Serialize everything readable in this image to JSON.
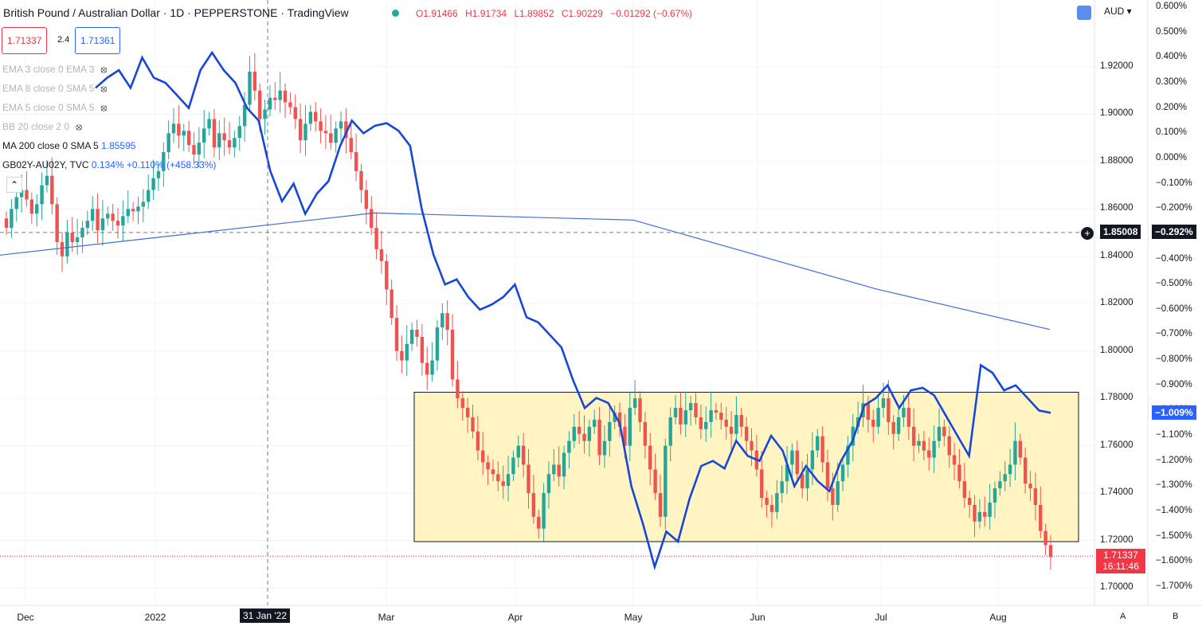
{
  "header": {
    "symbol": "British Pound / Australian Dollar · 1D · PEPPERSTONE · TradingView",
    "open": "O1.91466",
    "high": "H1.91734",
    "low": "L1.89852",
    "close": "C1.90229",
    "change": "−0.01292 (−0.67%)"
  },
  "order_panel": {
    "sell": "1.71337",
    "spread": "2.4",
    "buy": "1.71361"
  },
  "legend": [
    {
      "text": "EMA 3 close 0 EMA 3",
      "hidden": true
    },
    {
      "text": "EMA 8 close 0 SMA 5",
      "hidden": true
    },
    {
      "text": "EMA 5 close 0 SMA 5",
      "hidden": true
    },
    {
      "text": "BB 20 close 2 0",
      "hidden": true
    },
    {
      "text": "MA 200 close 0 SMA 5",
      "value": "1.85595",
      "hidden": false
    },
    {
      "text": "GB02Y-AU02Y, TVC",
      "value": "0.134%  +0.110%  (+458.33%)",
      "hidden": false
    }
  ],
  "currency": "AUD",
  "crosshair": {
    "price": "1.85008",
    "pct": "−0.292%",
    "date": "31 Jan '22"
  },
  "current": {
    "price": "1.71337",
    "countdown": "16:11:46"
  },
  "spread_tag": "−1.009%",
  "scale_buttons": {
    "a": "A",
    "b": "B"
  },
  "colors": {
    "up": "#26a69a",
    "down": "#ef5350",
    "ma": "#3d6fd6",
    "spread": "#1747d9",
    "box_fill": "#fff4c2"
  },
  "chart_data": {
    "type": "candlestick",
    "y_axis_right": {
      "ticks": [
        "1.92000",
        "1.90000",
        "1.88000",
        "1.86000",
        "1.84000",
        "1.82000",
        "1.80000",
        "1.78000",
        "1.76000",
        "1.74000",
        "1.72000",
        "1.70000"
      ],
      "range": [
        1.6925,
        1.9445
      ]
    },
    "pct_axis": {
      "ticks": [
        "0.600%",
        "0.500%",
        "0.400%",
        "0.300%",
        "0.200%",
        "0.100%",
        "0.000%",
        "−0.100%",
        "−0.200%",
        "−0.300%",
        "−0.400%",
        "−0.500%",
        "−0.600%",
        "−0.700%",
        "−0.800%",
        "−0.900%",
        "−1.000%",
        "−1.100%",
        "−1.200%",
        "−1.300%",
        "−1.400%",
        "−1.500%",
        "−1.600%",
        "−1.700%"
      ],
      "range": [
        0.6,
        -1.7
      ]
    },
    "x_axis": {
      "labels": [
        "Dec",
        "2022",
        "Mar",
        "Apr",
        "May",
        "Jun",
        "Jul",
        "Aug"
      ]
    },
    "candles_close": [
      1.852,
      1.86,
      1.865,
      1.868,
      1.864,
      1.858,
      1.862,
      1.87,
      1.874,
      1.862,
      1.846,
      1.84,
      1.85,
      1.846,
      1.848,
      1.852,
      1.855,
      1.86,
      1.851,
      1.856,
      1.858,
      1.855,
      1.853,
      1.857,
      1.86,
      1.859,
      1.861,
      1.863,
      1.868,
      1.873,
      1.876,
      1.884,
      1.892,
      1.896,
      1.891,
      1.893,
      1.887,
      1.883,
      1.888,
      1.894,
      1.898,
      1.886,
      1.892,
      1.889,
      1.886,
      1.89,
      1.895,
      1.904,
      1.918,
      1.91,
      1.898,
      1.902,
      1.907,
      1.906,
      1.91,
      1.905,
      1.903,
      1.898,
      1.889,
      1.896,
      1.901,
      1.897,
      1.893,
      1.892,
      1.888,
      1.894,
      1.897,
      1.89,
      1.884,
      1.876,
      1.868,
      1.86,
      1.852,
      1.843,
      1.838,
      1.826,
      1.814,
      1.8,
      1.796,
      1.803,
      1.809,
      1.806,
      1.795,
      1.79,
      1.796,
      1.81,
      1.816,
      1.809,
      1.788,
      1.78,
      1.776,
      1.772,
      1.766,
      1.758,
      1.753,
      1.75,
      1.748,
      1.745,
      1.743,
      1.748,
      1.755,
      1.76,
      1.752,
      1.74,
      1.73,
      1.725,
      1.74,
      1.748,
      1.752,
      1.747,
      1.757,
      1.762,
      1.768,
      1.765,
      1.762,
      1.768,
      1.771,
      1.756,
      1.762,
      1.77,
      1.774,
      1.768,
      1.76,
      1.776,
      1.78,
      1.77,
      1.76,
      1.75,
      1.74,
      1.73,
      1.76,
      1.772,
      1.776,
      1.769,
      1.775,
      1.778,
      1.772,
      1.767,
      1.77,
      1.775,
      1.774,
      1.771,
      1.768,
      1.765,
      1.773,
      1.768,
      1.762,
      1.758,
      1.75,
      1.738,
      1.735,
      1.732,
      1.74,
      1.745,
      1.752,
      1.758,
      1.748,
      1.742,
      1.75,
      1.758,
      1.764,
      1.753,
      1.742,
      1.735,
      1.745,
      1.752,
      1.76,
      1.768,
      1.772,
      1.778,
      1.771,
      1.768,
      1.776,
      1.78,
      1.77,
      1.765,
      1.772,
      1.776,
      1.768,
      1.76,
      1.762,
      1.758,
      1.755,
      1.762,
      1.768,
      1.764,
      1.756,
      1.752,
      1.745,
      1.738,
      1.735,
      1.728,
      1.732,
      1.73,
      1.736,
      1.742,
      1.745,
      1.748,
      1.752,
      1.762,
      1.755,
      1.744,
      1.742,
      1.735,
      1.724,
      1.718,
      1.713
    ],
    "ma200": [
      1.8405,
      1.8583,
      1.8553,
      1.8262,
      1.8091
    ],
    "gb02y_au02y_pct": [
      0.28,
      0.32,
      0.35,
      0.28,
      0.4,
      0.32,
      0.3,
      0.25,
      0.2,
      0.35,
      0.42,
      0.35,
      0.3,
      0.2,
      0.15,
      -0.05,
      -0.17,
      -0.1,
      -0.22,
      -0.14,
      -0.09,
      0.05,
      0.15,
      0.1,
      0.13,
      0.14,
      0.11,
      0.05,
      -0.2,
      -0.38,
      -0.5,
      -0.48,
      -0.55,
      -0.6,
      -0.58,
      -0.55,
      -0.5,
      -0.63,
      -0.65,
      -0.7,
      -0.75,
      -0.88,
      -0.99,
      -0.95,
      -0.97,
      -1.05,
      -1.3,
      -1.45,
      -1.62,
      -1.48,
      -1.52,
      -1.35,
      -1.22,
      -1.2,
      -1.23,
      -1.12,
      -1.18,
      -1.2,
      -1.1,
      -1.16,
      -1.3,
      -1.22,
      -1.28,
      -1.32,
      -1.2,
      -1.12,
      -0.98,
      -0.95,
      -0.9,
      -0.99,
      -0.92,
      -0.91,
      -0.94,
      -1.02,
      -1.1,
      -1.18,
      -0.82,
      -0.85,
      -0.92,
      -0.9,
      -0.95,
      -1.0,
      -1.009
    ],
    "range_box": {
      "top": 1.7826,
      "bottom": 1.7195,
      "from": "2022-03-13",
      "to": "2022-08-17"
    },
    "crosshair_level": 1.85008,
    "current_price": 1.71337
  }
}
